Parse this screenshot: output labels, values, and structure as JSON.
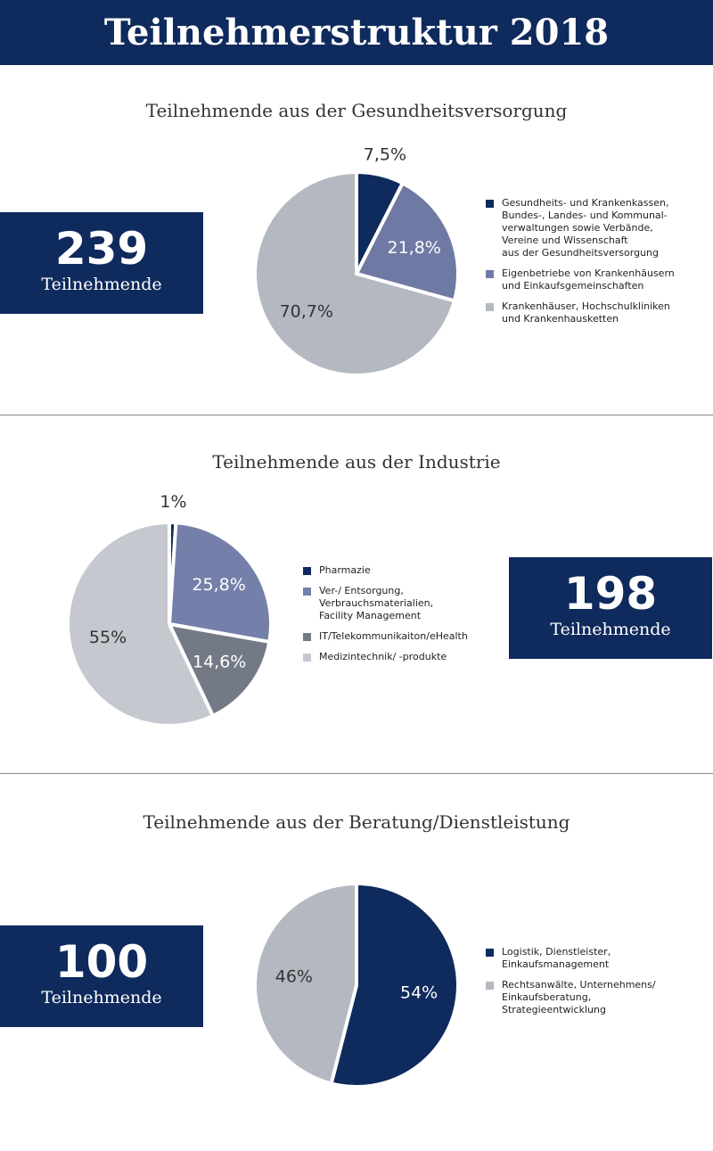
{
  "title": "Teilnehmerstruktur 2018",
  "chart_data": [
    {
      "type": "pie",
      "title": "Teilnehmende aus der Gesundheitsversorgung",
      "count": 239,
      "count_label": "Teilnehmende",
      "categories": [
        "Gesundheits- und Krankenkassen,\nBundes-, Landes- und Kommunal-\nverwaltungen sowie Verbände,\nVereine und Wissenschaft\naus der Gesundheitsversorgung",
        "Eigenbetriebe von Krankenhäusern\nund Einkaufsgemeinschaften",
        "Krankenhäuser, Hochschulkliniken\nund Krankenhausketten"
      ],
      "values": [
        7.5,
        21.8,
        70.7
      ],
      "value_labels": [
        "7,5%",
        "21,8%",
        "70,7%"
      ],
      "colors": [
        "#0f2a5c",
        "#6f7aa4",
        "#b4b8c1"
      ]
    },
    {
      "type": "pie",
      "title": "Teilnehmende aus der Industrie",
      "count": 198,
      "count_label": "Teilnehmende",
      "categories": [
        "Pharmazie",
        "Ver-/ Entsorgung,\nVerbrauchsmaterialien,\nFacility Management",
        "IT/Telekommunikaiton/eHealth",
        "Medizintechnik/ -produkte"
      ],
      "values": [
        1,
        25.8,
        14.6,
        55
      ],
      "value_labels": [
        "1%",
        "25,8%",
        "14,6%",
        "55%"
      ],
      "colors": [
        "#0f2a5c",
        "#7480a9",
        "#737a85",
        "#c5c8cf"
      ]
    },
    {
      "type": "pie",
      "title": "Teilnehmende aus der Beratung/Dienstleistung",
      "count": 100,
      "count_label": "Teilnehmende",
      "categories": [
        "Logistik, Dienstleister,\nEinkaufsmanagement",
        "Rechtsanwälte, Unternehmens/\nEinkaufsberatung,\nStrategieentwicklung"
      ],
      "values": [
        54,
        46
      ],
      "value_labels": [
        "54%",
        "46%"
      ],
      "colors": [
        "#0f2a5c",
        "#b4b8c1"
      ]
    }
  ]
}
